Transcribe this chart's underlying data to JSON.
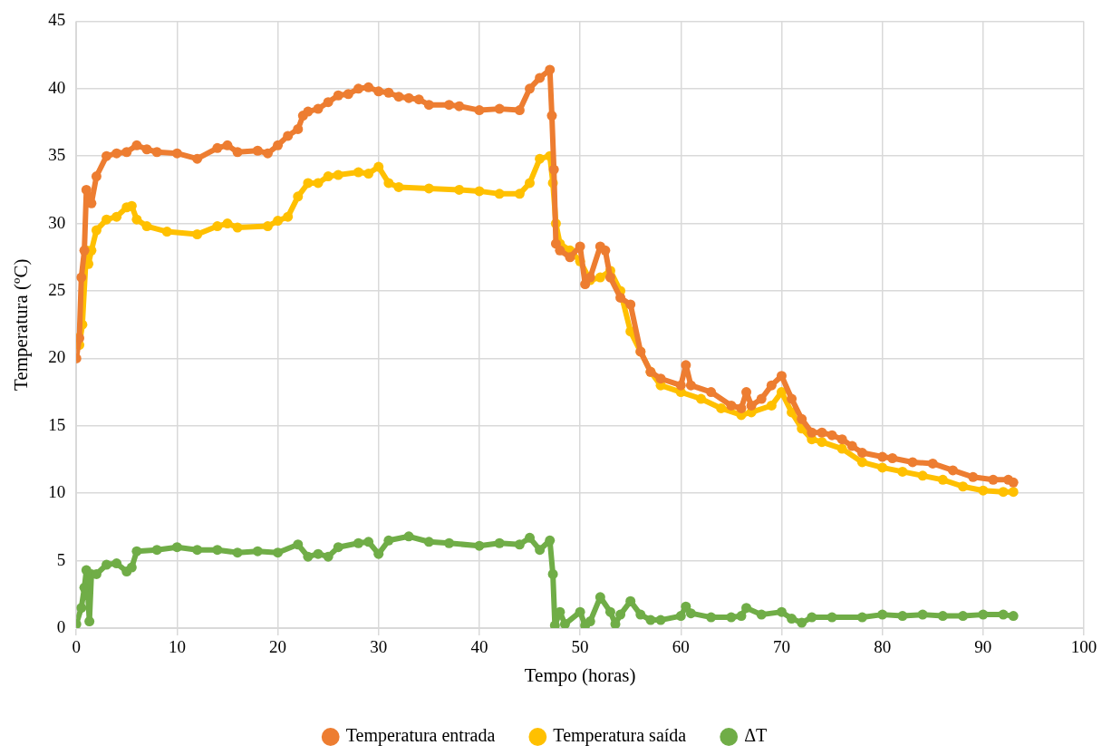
{
  "chart_data": {
    "type": "line",
    "xlabel": "Tempo (horas)",
    "ylabel": "Temperatura (ºC)",
    "xlim": [
      0,
      100
    ],
    "xticks": [
      0,
      10,
      20,
      30,
      40,
      50,
      60,
      70,
      80,
      90,
      100
    ],
    "ylim": [
      0,
      45
    ],
    "yticks": [
      0,
      5,
      10,
      15,
      20,
      25,
      30,
      35,
      40,
      45
    ],
    "grid": true,
    "legend": "bottom",
    "marker": "circle",
    "line_style": "solid",
    "series": [
      {
        "name": "Temperatura entrada",
        "color": "#ed7d31",
        "x": [
          0,
          0.3,
          0.5,
          0.8,
          1,
          1.5,
          2,
          3,
          4,
          5,
          6,
          7,
          8,
          10,
          12,
          14,
          15,
          16,
          18,
          19,
          20,
          21,
          22,
          22.5,
          23,
          24,
          25,
          26,
          27,
          28,
          29,
          30,
          31,
          32,
          33,
          34,
          35,
          37,
          38,
          40,
          42,
          44,
          45,
          46,
          47,
          47.2,
          47.4,
          47.6,
          48,
          49,
          50,
          50.5,
          51,
          52,
          52.5,
          53,
          54,
          55,
          56,
          57,
          58,
          60,
          60.5,
          61,
          63,
          65,
          66,
          66.5,
          67,
          68,
          69,
          70,
          71,
          72,
          73,
          74,
          75,
          76,
          77,
          78,
          80,
          81,
          83,
          85,
          87,
          89,
          91,
          92.5,
          93
        ],
        "values": [
          20,
          21.5,
          26,
          28,
          32.5,
          31.5,
          33.5,
          35,
          35.2,
          35.3,
          35.8,
          35.5,
          35.3,
          35.2,
          34.8,
          35.6,
          35.8,
          35.3,
          35.4,
          35.2,
          35.8,
          36.5,
          37,
          38,
          38.3,
          38.5,
          39,
          39.5,
          39.6,
          40,
          40.1,
          39.8,
          39.7,
          39.4,
          39.3,
          39.2,
          38.8,
          38.8,
          38.7,
          38.4,
          38.5,
          38.4,
          40,
          40.8,
          41.4,
          38,
          34,
          28.5,
          28,
          27.5,
          28.3,
          25.5,
          26,
          28.3,
          28,
          26,
          24.5,
          24,
          20.5,
          19,
          18.5,
          18,
          19.5,
          18,
          17.5,
          16.5,
          16.3,
          17.5,
          16.5,
          17,
          18,
          18.7,
          17,
          15.5,
          14.5,
          14.5,
          14.3,
          14,
          13.5,
          13,
          12.7,
          12.6,
          12.3,
          12.2,
          11.7,
          11.2,
          11,
          11,
          10.8
        ]
      },
      {
        "name": "Temperatura saída",
        "color": "#ffc000",
        "x": [
          0,
          0.3,
          0.6,
          1,
          1.2,
          1.5,
          2,
          3,
          4,
          5,
          5.5,
          6,
          7,
          9,
          12,
          14,
          15,
          16,
          19,
          20,
          21,
          22,
          23,
          24,
          25,
          26,
          28,
          29,
          30,
          31,
          32,
          35,
          38,
          40,
          42,
          44,
          45,
          46,
          47,
          47.3,
          47.6,
          48,
          49,
          50,
          51,
          52,
          53,
          54,
          55,
          56,
          57,
          58,
          60,
          62,
          64,
          66,
          67,
          69,
          70,
          71,
          72,
          73,
          74,
          76,
          78,
          80,
          82,
          84,
          86,
          88,
          90,
          92,
          93
        ],
        "values": [
          21.5,
          21,
          22.5,
          28,
          27,
          28,
          29.5,
          30.3,
          30.5,
          31.2,
          31.3,
          30.3,
          29.8,
          29.4,
          29.2,
          29.8,
          30,
          29.7,
          29.8,
          30.2,
          30.5,
          32,
          33,
          33,
          33.5,
          33.6,
          33.8,
          33.7,
          34.2,
          33,
          32.7,
          32.6,
          32.5,
          32.4,
          32.2,
          32.2,
          33,
          34.8,
          35,
          33,
          30,
          28.5,
          28,
          27.2,
          25.8,
          26,
          26.5,
          25,
          22,
          20.5,
          19,
          18,
          17.5,
          17,
          16.3,
          15.8,
          16,
          16.5,
          17.5,
          16,
          14.8,
          14,
          13.8,
          13.3,
          12.3,
          11.9,
          11.6,
          11.3,
          11,
          10.5,
          10.2,
          10.1,
          10.1
        ]
      },
      {
        "name": "ΔT",
        "color": "#70ad47",
        "x": [
          0,
          0.5,
          0.8,
          1,
          1.3,
          1.5,
          2,
          3,
          4,
          5,
          5.5,
          6,
          8,
          10,
          12,
          14,
          16,
          18,
          20,
          22,
          23,
          24,
          25,
          26,
          28,
          29,
          30,
          31,
          33,
          35,
          37,
          40,
          42,
          44,
          45,
          46,
          47,
          47.3,
          47.5,
          48,
          48.5,
          50,
          50.5,
          51,
          52,
          53,
          53.5,
          54,
          55,
          56,
          57,
          58,
          60,
          60.5,
          61,
          63,
          65,
          66,
          66.5,
          68,
          70,
          71,
          72,
          73,
          75,
          78,
          80,
          82,
          84,
          86,
          88,
          90,
          92,
          93
        ],
        "values": [
          0.3,
          1.5,
          3,
          4.3,
          0.5,
          4,
          4,
          4.7,
          4.8,
          4.2,
          4.5,
          5.7,
          5.8,
          6,
          5.8,
          5.8,
          5.6,
          5.7,
          5.6,
          6.2,
          5.3,
          5.5,
          5.3,
          6,
          6.3,
          6.4,
          5.5,
          6.5,
          6.8,
          6.4,
          6.3,
          6.1,
          6.3,
          6.2,
          6.7,
          5.8,
          6.5,
          4,
          0.2,
          1.2,
          0.3,
          1.2,
          0.2,
          0.5,
          2.3,
          1.2,
          0.3,
          1,
          2,
          1,
          0.6,
          0.6,
          0.9,
          1.6,
          1.1,
          0.8,
          0.8,
          0.9,
          1.5,
          1,
          1.2,
          0.7,
          0.4,
          0.8,
          0.8,
          0.8,
          1,
          0.9,
          1,
          0.9,
          0.9,
          1,
          1,
          0.9
        ]
      }
    ]
  }
}
